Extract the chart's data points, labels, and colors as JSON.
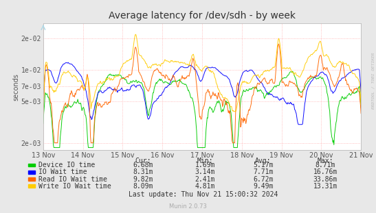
{
  "title": "Average latency for /dev/sdh - by week",
  "ylabel": "seconds",
  "background_color": "#e8e8e8",
  "plot_bg_color": "#ffffff",
  "grid_color": "#ffaaaa",
  "x_labels": [
    "13 Nov",
    "14 Nov",
    "15 Nov",
    "16 Nov",
    "17 Nov",
    "18 Nov",
    "19 Nov",
    "20 Nov",
    "21 Nov"
  ],
  "y_ticks": [
    0.002,
    0.005,
    0.007,
    0.01,
    0.02
  ],
  "y_tick_labels": [
    "2e-03",
    "5e-03",
    "7e-03",
    "1e-02",
    "2e-02"
  ],
  "ylim_log": [
    0.0017,
    0.028
  ],
  "series": [
    {
      "name": "Device IO time",
      "color": "#00cc00"
    },
    {
      "name": "IO Wait time",
      "color": "#0000ff"
    },
    {
      "name": "Read IO Wait time",
      "color": "#ff6600"
    },
    {
      "name": "Write IO Wait time",
      "color": "#ffcc00"
    }
  ],
  "legend_cols": [
    "Cur:",
    "Min:",
    "Avg:",
    "Max:"
  ],
  "legend_data": [
    [
      "6.68m",
      "1.69m",
      "5.17m",
      "8.71m"
    ],
    [
      "8.31m",
      "3.14m",
      "7.71m",
      "16.76m"
    ],
    [
      "9.82m",
      "2.41m",
      "6.72m",
      "33.86m"
    ],
    [
      "8.09m",
      "4.81m",
      "9.49m",
      "13.31m"
    ]
  ],
  "footer": "Last update: Thu Nov 21 15:00:32 2024",
  "muninver": "Munin 2.0.73",
  "watermark": "RRDTOOL / TOBI OETIKER",
  "title_fontsize": 10,
  "axis_fontsize": 7,
  "legend_fontsize": 7
}
